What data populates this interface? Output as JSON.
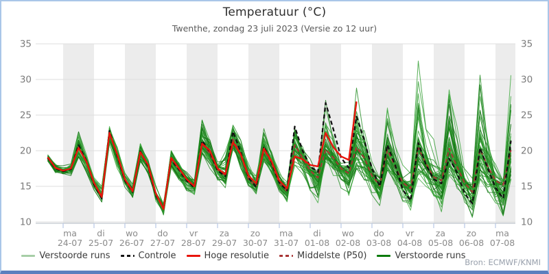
{
  "header": {
    "title": "Temperatuur (°C)",
    "subtitle": "Twenthe, zondag 23 juli 2023 (Versie zo 12 uur)"
  },
  "source": "Bron: ECMWF/KNMI",
  "legend": [
    {
      "label": "Verstoorde runs",
      "color": "#a6cea6",
      "style": "solid"
    },
    {
      "label": "Controle",
      "color": "#111111",
      "style": "dashed"
    },
    {
      "label": "Hoge resolutie",
      "color": "#e8140c",
      "style": "solid"
    },
    {
      "label": "Middelste (P50)",
      "color": "#a83535",
      "style": "dashed"
    },
    {
      "label": "Verstoorde runs",
      "color": "#0b7a0b",
      "style": "solid"
    }
  ],
  "colors": {
    "band_gray": "#ececec",
    "grid": "#dedede",
    "axis_line": "#c0c6ce",
    "tick": "#b8c8e6",
    "tick_label": "#7a7a7a",
    "day_label": "#8a8a8a",
    "ensemble_shades": [
      "#2d9b2d",
      "#1d8a1d",
      "#137113",
      "#3aa83a"
    ]
  },
  "chart_data": {
    "type": "line",
    "title": "Temperatuur (°C)",
    "subtitle": "Twenthe, zondag 23 juli 2023 (Versie zo 12 uur)",
    "ylabel": "",
    "xlabel": "",
    "ylim": [
      10,
      35
    ],
    "yticks": [
      35,
      30,
      25,
      20,
      15,
      10
    ],
    "ytick_sides": "both",
    "grid": "horizontal",
    "legend_position": "bottom",
    "x_unit": "hours since 2023-07-23 12:00",
    "x_step_hours": 6,
    "x_range_hours": [
      0,
      360
    ],
    "day_labels": [
      {
        "weekday": "ma",
        "date": "24-07"
      },
      {
        "weekday": "di",
        "date": "25-07"
      },
      {
        "weekday": "wo",
        "date": "26-07"
      },
      {
        "weekday": "do",
        "date": "27-07"
      },
      {
        "weekday": "vr",
        "date": "28-07"
      },
      {
        "weekday": "za",
        "date": "29-07"
      },
      {
        "weekday": "zo",
        "date": "30-07"
      },
      {
        "weekday": "ma",
        "date": "31-07"
      },
      {
        "weekday": "di",
        "date": "01-08"
      },
      {
        "weekday": "wo",
        "date": "02-08"
      },
      {
        "weekday": "do",
        "date": "03-08"
      },
      {
        "weekday": "vr",
        "date": "04-08"
      },
      {
        "weekday": "za",
        "date": "05-08"
      },
      {
        "weekday": "zo",
        "date": "06-08"
      },
      {
        "weekday": "ma",
        "date": "07-08"
      }
    ],
    "series": [
      {
        "name": "Hoge resolutie",
        "color": "#e8140c",
        "style": "solid",
        "width": 2.4,
        "x_end_hours": 240,
        "values": [
          19.1,
          17.6,
          17.2,
          17.5,
          20.4,
          18.5,
          15.5,
          13.5,
          22.5,
          19.5,
          16.0,
          14.3,
          19.8,
          18.0,
          14.0,
          11.8,
          19.0,
          17.5,
          16.0,
          15.0,
          21.0,
          20.0,
          17.5,
          16.7,
          21.2,
          19.5,
          16.5,
          15.4,
          20.3,
          18.5,
          15.8,
          14.7,
          19.2,
          18.8,
          18.0,
          17.8,
          22.5,
          20.5,
          19.2,
          18.7,
          26.9
        ]
      },
      {
        "name": "Controle",
        "color": "#111111",
        "style": "dashed",
        "width": 2.3,
        "x_end_hours": 360,
        "values": [
          19.0,
          17.5,
          17.1,
          17.4,
          20.8,
          18.6,
          15.3,
          13.3,
          22.8,
          19.3,
          15.8,
          14.2,
          19.9,
          17.8,
          13.8,
          11.9,
          18.8,
          17.3,
          15.8,
          14.8,
          21.4,
          19.8,
          17.2,
          16.4,
          22.7,
          19.8,
          16.2,
          14.9,
          20.6,
          18.3,
          15.5,
          14.4,
          23.4,
          20.0,
          17.8,
          17.0,
          26.7,
          23.0,
          19.0,
          17.6,
          24.8,
          21.5,
          17.5,
          15.0,
          20.8,
          18.0,
          14.5,
          13.0,
          21.1,
          18.0,
          16.0,
          15.4,
          18.9,
          17.0,
          14.0,
          12.6,
          20.4,
          17.5,
          14.8,
          13.3,
          21.4
        ]
      },
      {
        "name": "Middelste (P50)",
        "color": "#a83535",
        "style": "dashed",
        "width": 2.0,
        "x_end_hours": 360,
        "values": [
          19.0,
          17.6,
          17.2,
          17.5,
          20.5,
          18.5,
          15.4,
          13.6,
          22.4,
          19.4,
          15.9,
          14.4,
          19.7,
          17.9,
          14.0,
          12.0,
          18.8,
          17.4,
          15.9,
          15.0,
          21.0,
          19.6,
          17.3,
          16.5,
          21.6,
          19.5,
          16.0,
          15.0,
          20.2,
          18.2,
          15.4,
          14.3,
          20.8,
          19.0,
          17.2,
          16.2,
          20.2,
          19.0,
          17.5,
          16.8,
          20.5,
          19.0,
          16.5,
          15.1,
          20.1,
          17.8,
          15.5,
          14.7,
          20.4,
          18.2,
          16.3,
          15.8,
          20.3,
          17.8,
          15.5,
          14.2,
          20.2,
          17.8,
          15.8,
          15.2,
          20.1
        ]
      }
    ],
    "ensemble": {
      "name": "Verstoorde runs",
      "count": 50,
      "min": [
        18.5,
        16.8,
        16.3,
        16.5,
        19.0,
        17.0,
        14.5,
        12.8,
        21.0,
        17.5,
        14.8,
        13.3,
        18.5,
        16.5,
        12.8,
        10.8,
        17.5,
        15.5,
        14.0,
        13.8,
        19.5,
        17.5,
        15.5,
        14.8,
        20.0,
        17.0,
        14.8,
        13.5,
        18.5,
        16.5,
        14.0,
        12.5,
        18.0,
        16.5,
        14.0,
        11.2,
        18.5,
        16.5,
        14.5,
        13.2,
        17.5,
        15.5,
        13.5,
        12.3,
        16.5,
        14.5,
        12.5,
        11.3,
        16.0,
        14.5,
        13.0,
        11.2,
        16.5,
        14.5,
        12.0,
        10.6,
        16.0,
        14.0,
        12.0,
        10.8,
        16.0
      ],
      "max": [
        19.5,
        18.3,
        17.9,
        18.5,
        23.2,
        19.5,
        16.5,
        15.0,
        23.4,
        20.5,
        17.0,
        15.3,
        21.0,
        19.0,
        15.5,
        13.0,
        20.0,
        18.5,
        17.0,
        16.3,
        24.3,
        21.5,
        18.5,
        20.0,
        23.6,
        21.5,
        18.5,
        17.0,
        23.1,
        20.0,
        17.5,
        15.8,
        23.5,
        21.0,
        19.5,
        18.3,
        27.5,
        23.5,
        20.5,
        19.3,
        28.8,
        23.0,
        19.5,
        17.3,
        26.0,
        21.5,
        18.0,
        17.0,
        32.6,
        23.0,
        21.6,
        18.5,
        29.0,
        23.5,
        19.0,
        16.5,
        32.8,
        24.0,
        19.0,
        16.0,
        30.6
      ]
    }
  }
}
